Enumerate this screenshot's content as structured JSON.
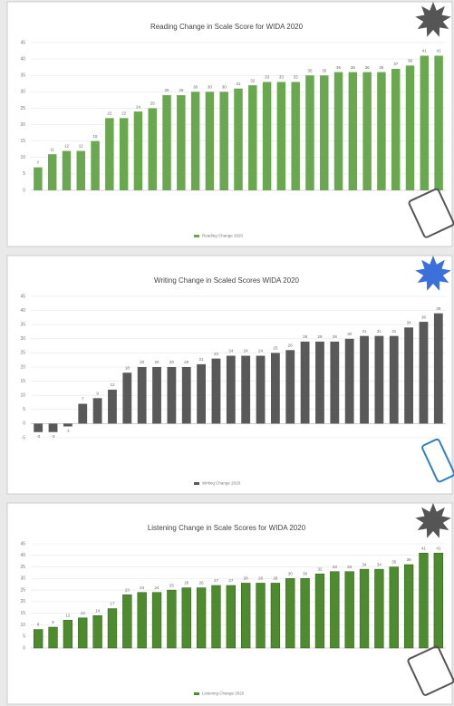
{
  "chart_data": [
    {
      "type": "bar",
      "title": "Reading Change in Scale Score for WIDA 2020",
      "legend": "Reading Change 2020",
      "color": "#6aa84f",
      "outline": "none",
      "categories": [
        null,
        null,
        null,
        null,
        null,
        null,
        null,
        null,
        null,
        null,
        null,
        null,
        null,
        null,
        null,
        null,
        null,
        null,
        null,
        null,
        null,
        null,
        null,
        null,
        null,
        null,
        null,
        null,
        null
      ],
      "values": [
        7,
        11,
        12,
        12,
        15,
        22,
        22,
        24,
        25,
        29,
        29,
        30,
        30,
        30,
        31,
        32,
        33,
        33,
        33,
        35,
        35,
        36,
        36,
        36,
        36,
        37,
        38,
        41,
        41
      ],
      "ylim": [
        0,
        45
      ],
      "yticks": [
        0,
        5,
        10,
        15,
        20,
        25,
        30,
        35,
        40,
        45
      ],
      "grid": true
    },
    {
      "type": "bar",
      "title": "Writing Change in Scaled Scores WIDA 2020",
      "legend": "Writing Change 2020",
      "color": "#595959",
      "outline": "none",
      "categories": [
        null,
        null,
        null,
        null,
        null,
        null,
        null,
        null,
        null,
        null,
        null,
        null,
        null,
        null,
        null,
        null,
        null,
        null,
        null,
        null,
        null,
        null,
        null,
        null,
        null,
        null,
        null,
        null
      ],
      "values": [
        -3,
        -3,
        -1,
        7,
        9,
        12,
        18,
        20,
        20,
        20,
        20,
        21,
        23,
        24,
        24,
        24,
        25,
        26,
        29,
        29,
        29,
        30,
        31,
        31,
        31,
        34,
        36,
        39
      ],
      "ylim": [
        -5,
        45
      ],
      "yticks": [
        -5,
        0,
        5,
        10,
        15,
        20,
        25,
        30,
        35,
        40,
        45
      ],
      "grid": true
    },
    {
      "type": "bar",
      "title": "Listening Change in Scale Scores for WIDA 2020",
      "legend": "Listening Change 2020",
      "color": "#4e8a2e",
      "outline": "#2d5a18",
      "categories": [
        null,
        null,
        null,
        null,
        null,
        null,
        null,
        null,
        null,
        null,
        null,
        null,
        null,
        null,
        null,
        null,
        null,
        null,
        null,
        null,
        null,
        null,
        null,
        null,
        null,
        null,
        null,
        null
      ],
      "values": [
        8,
        9,
        12,
        13,
        14,
        17,
        23,
        24,
        24,
        25,
        26,
        26,
        27,
        27,
        28,
        28,
        28,
        30,
        30,
        32,
        33,
        33,
        34,
        34,
        35,
        36,
        41,
        41
      ],
      "ylim": [
        0,
        45
      ],
      "yticks": [
        0,
        5,
        10,
        15,
        20,
        25,
        30,
        35,
        40,
        45
      ],
      "grid": true
    }
  ]
}
